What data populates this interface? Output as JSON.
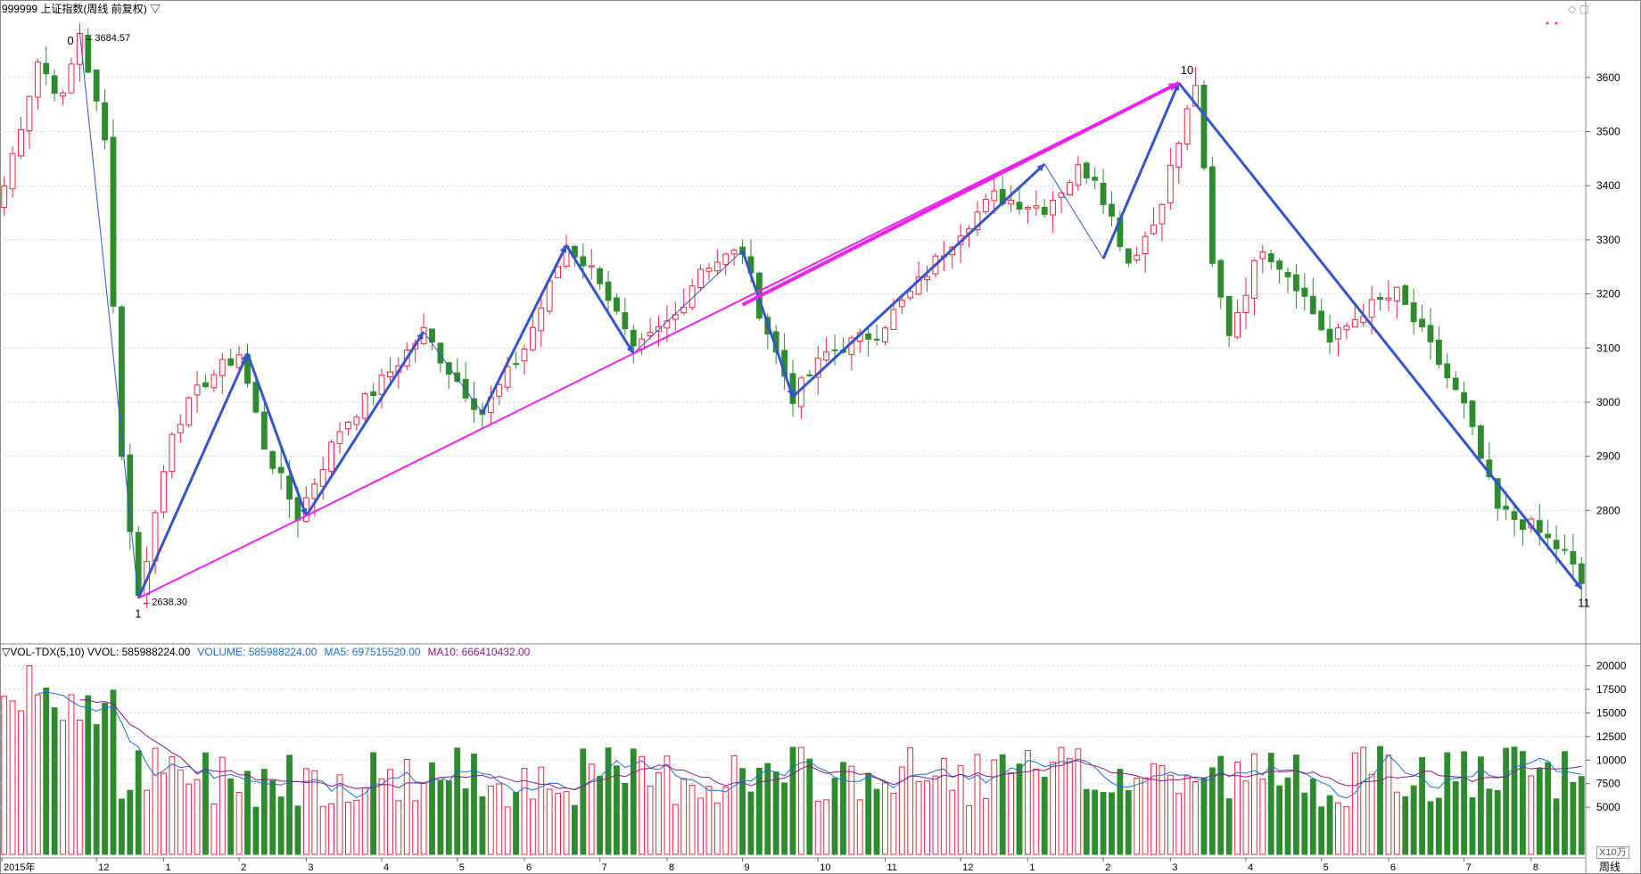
{
  "header": {
    "title": "999999 上证指数(周线 前复权) ▽",
    "window_icons": "◇ ▢"
  },
  "volume_header": {
    "indicator": "▽VOL-TDX(5,10) VVOL: 585988224.00",
    "volume": "VOLUME: 585988224.00",
    "ma5": "MA5: 697515520.00",
    "ma10": "MA10: 666410432.00"
  },
  "period_label": "周线",
  "volume_unit": "X10万",
  "colors": {
    "up": "#e8283c",
    "down": "#2e8b2e",
    "wave": "#3355cc",
    "trendline": "#ee22ee",
    "ma5": "#1a6fd6",
    "ma10": "#8b1a8b"
  },
  "chart_data": {
    "type": "candlestick",
    "price_axis": {
      "ticks": [
        2800,
        2900,
        3000,
        3100,
        3200,
        3300,
        3400,
        3500,
        3600
      ]
    },
    "volume_axis": {
      "ticks": [
        5000,
        7500,
        10000,
        12500,
        15000,
        17500,
        20000
      ]
    },
    "x_ticks": [
      "2015年",
      "12",
      "1",
      "2",
      "3",
      "4",
      "5",
      "6",
      "7",
      "8",
      "9",
      "10",
      "11",
      "12",
      "1",
      "2",
      "3",
      "4",
      "5",
      "6",
      "7",
      "8"
    ],
    "annotations": [
      {
        "label": "0",
        "price_label": "3684.57"
      },
      {
        "label": "1",
        "price_label": "2638.30"
      },
      {
        "label": "10"
      },
      {
        "label": "11"
      }
    ],
    "anchors": {
      "first_close": 3400,
      "high_point": 3684.57,
      "low_point": 2638.3,
      "peak_10": 3590,
      "end_low": 2655,
      "last_close": 2665
    },
    "candles": []
  }
}
